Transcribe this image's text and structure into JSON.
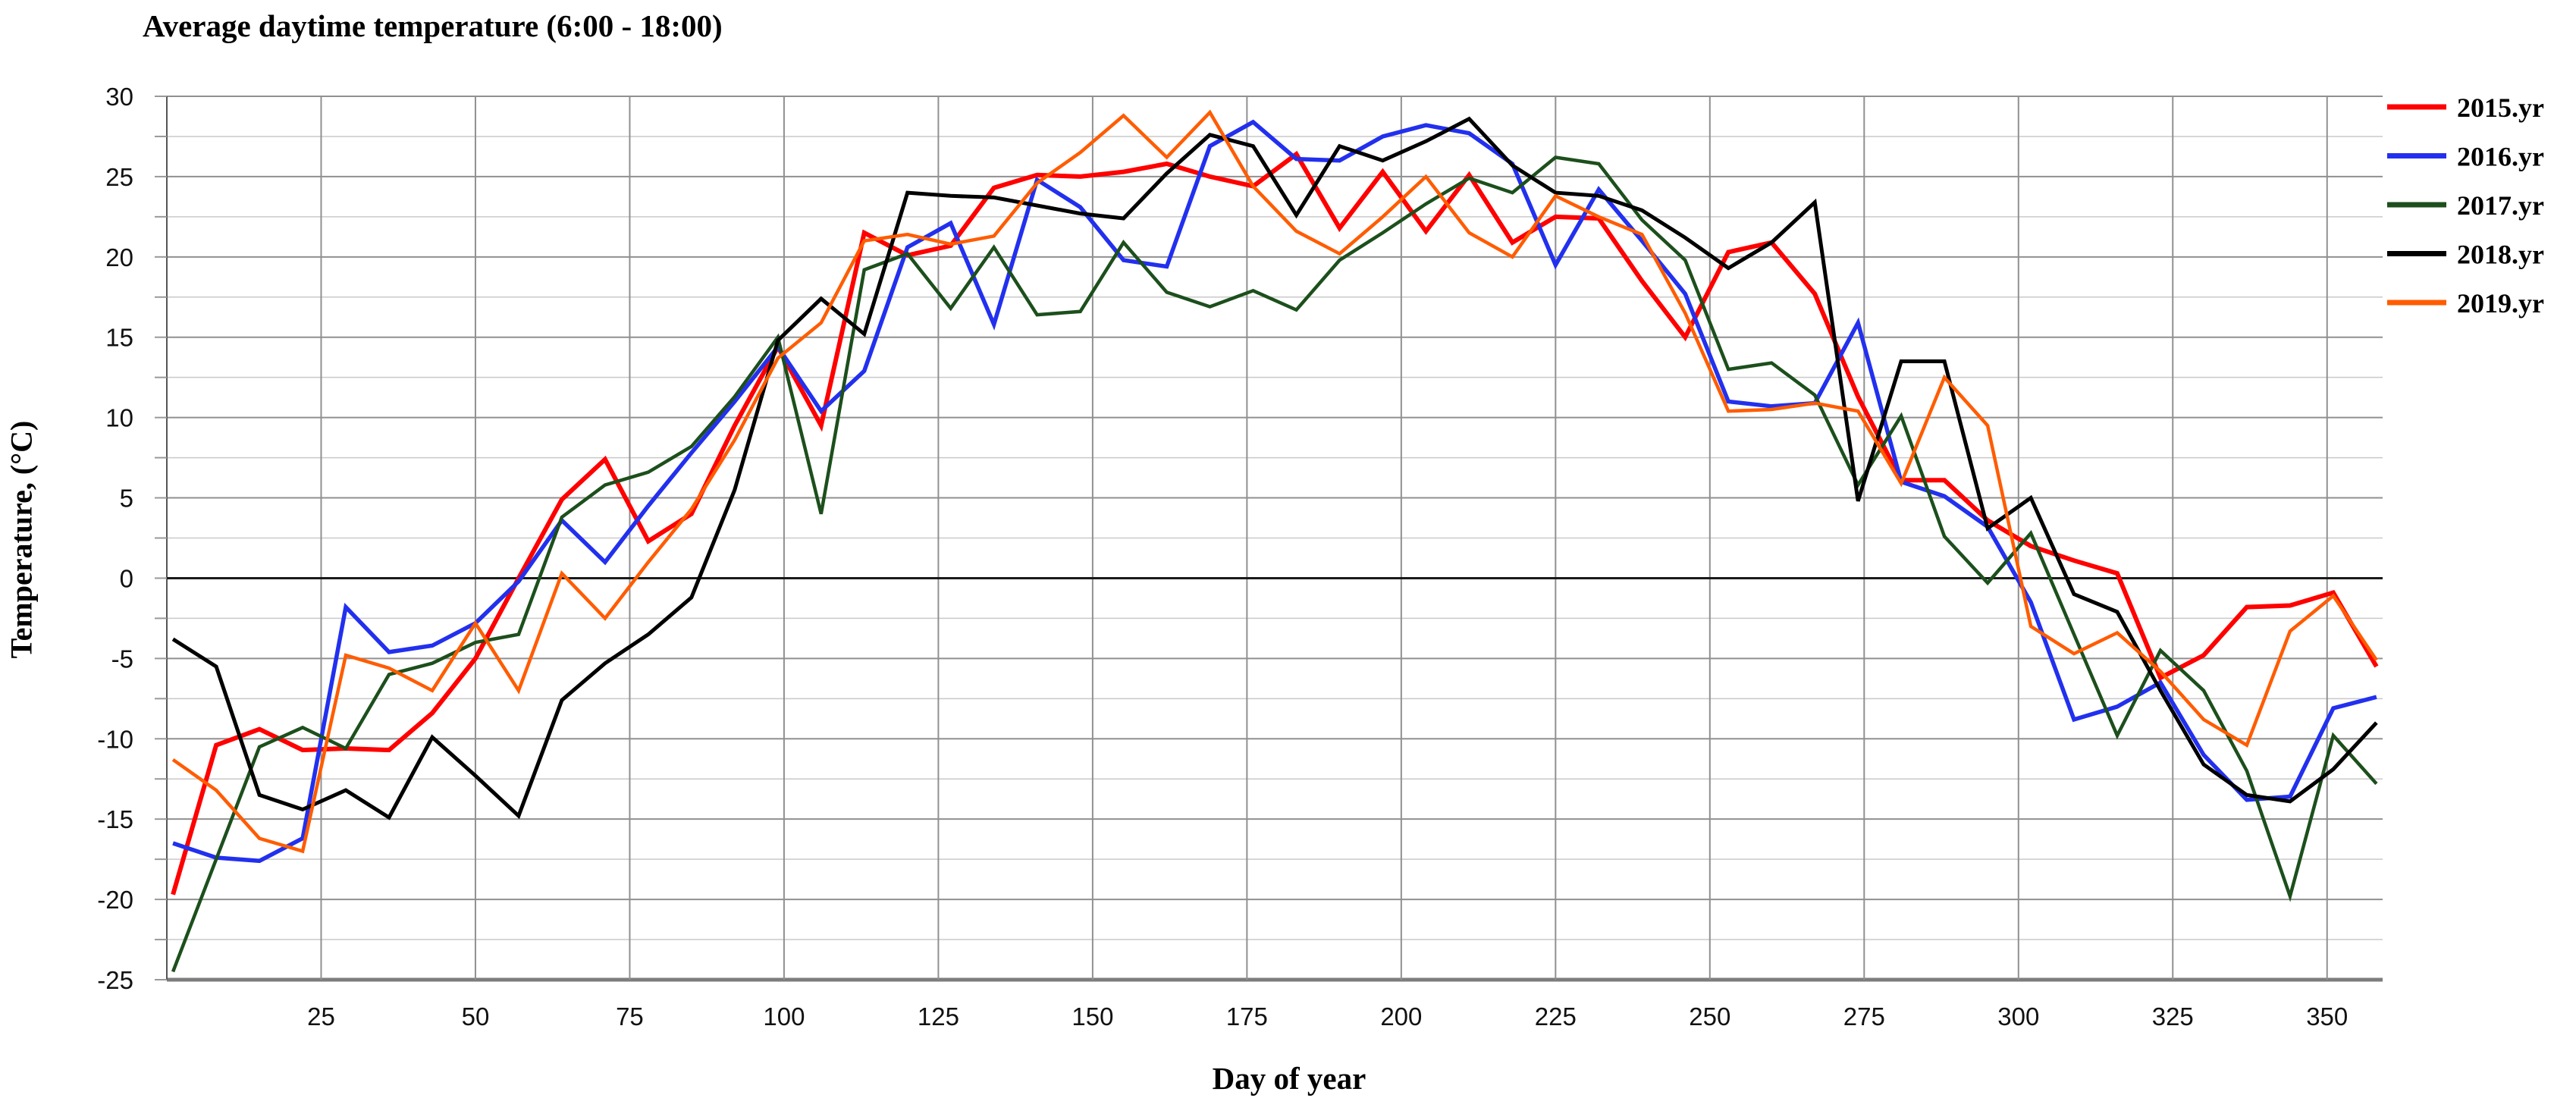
{
  "chart_data": {
    "type": "line",
    "title": "Average daytime temperature (6:00 - 18:00)",
    "xlabel": "Day of year",
    "ylabel": "Temperature, (°C)",
    "x_range": [
      0,
      359
    ],
    "ylim": [
      -25,
      30
    ],
    "x_ticks": [
      25,
      50,
      75,
      100,
      125,
      150,
      175,
      200,
      225,
      250,
      275,
      300,
      325,
      350
    ],
    "y_ticks": [
      30,
      25,
      20,
      15,
      10,
      5,
      0,
      -5,
      -10,
      -15,
      -20,
      -25
    ],
    "y_minor_step": 2.5,
    "grid": true,
    "legend_position": "right",
    "x": [
      1,
      8,
      15,
      22,
      29,
      36,
      43,
      50,
      57,
      64,
      71,
      78,
      85,
      92,
      99,
      106,
      113,
      120,
      127,
      134,
      141,
      148,
      155,
      162,
      169,
      176,
      183,
      190,
      197,
      204,
      211,
      218,
      225,
      232,
      239,
      246,
      253,
      260,
      267,
      274,
      281,
      288,
      295,
      302,
      309,
      316,
      323,
      330,
      337,
      344,
      351,
      358
    ],
    "series": [
      {
        "name": "2015.yr",
        "color": "#FF0000",
        "width": 6,
        "values": [
          -19.7,
          -10.4,
          -9.4,
          -10.7,
          -10.6,
          -10.7,
          -8.4,
          -5.0,
          0.0,
          4.9,
          7.4,
          2.3,
          4.0,
          9.5,
          14.4,
          9.5,
          21.5,
          20.1,
          20.7,
          24.3,
          25.1,
          25.0,
          25.3,
          25.8,
          25.0,
          24.4,
          26.4,
          21.8,
          25.3,
          21.6,
          25.1,
          20.9,
          22.5,
          22.4,
          18.5,
          15.0,
          20.3,
          20.9,
          17.7,
          11.3,
          6.1,
          6.1,
          3.6,
          2.0,
          1.1,
          0.3,
          -6.2,
          -4.8,
          -1.8,
          -1.7,
          -0.9,
          -5.5
        ]
      },
      {
        "name": "2016.yr",
        "color": "#2230EE",
        "width": 5.5,
        "values": [
          -16.5,
          -17.4,
          -17.6,
          -16.2,
          -1.8,
          -4.6,
          -4.2,
          -2.8,
          -0.2,
          3.6,
          1.0,
          4.5,
          7.8,
          11.0,
          14.4,
          10.4,
          12.9,
          20.6,
          22.1,
          15.8,
          24.8,
          23.1,
          19.8,
          19.4,
          26.9,
          28.4,
          26.1,
          26.0,
          27.5,
          28.2,
          27.7,
          25.8,
          19.5,
          24.2,
          21.0,
          17.7,
          11.0,
          10.7,
          10.9,
          15.9,
          6.0,
          5.1,
          3.2,
          -1.5,
          -8.8,
          -8.0,
          -6.5,
          -11.0,
          -13.8,
          -13.6,
          -8.1,
          -7.4
        ]
      },
      {
        "name": "2017.yr",
        "color": "#1C4F1C",
        "width": 4.5,
        "values": [
          -24.5,
          -17.5,
          -10.5,
          -9.3,
          -10.6,
          -6.0,
          -5.3,
          -4.0,
          -3.5,
          3.8,
          5.8,
          6.6,
          8.2,
          11.3,
          15.0,
          4.0,
          19.2,
          20.2,
          16.8,
          20.6,
          16.4,
          16.6,
          20.9,
          17.8,
          16.9,
          17.9,
          16.7,
          19.8,
          21.5,
          23.3,
          24.9,
          24.0,
          26.2,
          25.8,
          22.3,
          19.8,
          13.0,
          13.4,
          11.4,
          5.8,
          10.1,
          2.6,
          -0.3,
          2.8,
          -3.5,
          -9.8,
          -4.5,
          -7.0,
          -12.0,
          -19.8,
          -9.8,
          -12.8
        ]
      },
      {
        "name": "2018.yr",
        "color": "#000000",
        "width": 5,
        "values": [
          -3.8,
          -5.5,
          -13.5,
          -14.4,
          -13.2,
          -14.9,
          -9.9,
          -12.3,
          -14.8,
          -7.6,
          -5.3,
          -3.5,
          -1.2,
          5.5,
          14.8,
          17.4,
          15.2,
          24.0,
          23.8,
          23.7,
          23.2,
          22.7,
          22.4,
          25.2,
          27.6,
          26.9,
          22.6,
          26.9,
          26.0,
          27.2,
          28.6,
          25.7,
          24.0,
          23.8,
          22.9,
          21.2,
          19.3,
          20.9,
          23.4,
          4.8,
          13.5,
          13.5,
          3.1,
          5.0,
          -1.0,
          -2.1,
          -7.0,
          -11.6,
          -13.5,
          -13.9,
          -11.9,
          -9.0
        ]
      },
      {
        "name": "2019.yr",
        "color": "#FF5C00",
        "width": 4.5,
        "values": [
          -11.3,
          -13.2,
          -16.2,
          -17.0,
          -4.8,
          -5.6,
          -7.0,
          -2.8,
          -7.0,
          0.3,
          -2.5,
          1.0,
          4.3,
          8.6,
          13.7,
          15.9,
          21.0,
          21.4,
          20.8,
          21.3,
          24.6,
          26.5,
          28.8,
          26.2,
          29.0,
          24.4,
          21.6,
          20.2,
          22.5,
          25.0,
          21.5,
          20.0,
          23.8,
          22.5,
          21.4,
          16.5,
          10.4,
          10.5,
          10.9,
          10.4,
          5.9,
          12.5,
          9.5,
          -3.0,
          -4.7,
          -3.4,
          -5.8,
          -8.8,
          -10.4,
          -3.3,
          -1.1,
          -5.1
        ]
      }
    ]
  }
}
